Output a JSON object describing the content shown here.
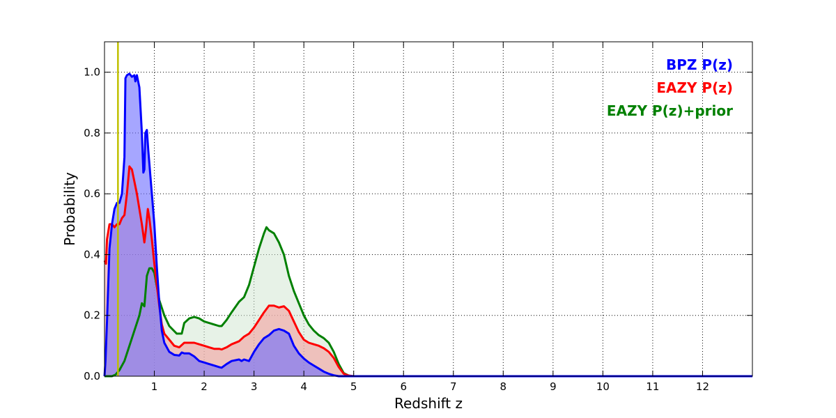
{
  "chart_data": {
    "type": "area",
    "title": "",
    "xlabel": "Redshift z",
    "ylabel": "Probability",
    "xlim": [
      0,
      13
    ],
    "ylim": [
      0,
      1.1
    ],
    "grid": true,
    "legend_placement": "top-right",
    "xticks": [
      1,
      2,
      3,
      4,
      5,
      6,
      7,
      8,
      9,
      10,
      11,
      12
    ],
    "yticks": [
      0.0,
      0.2,
      0.4,
      0.6,
      0.8,
      1.0
    ],
    "xtick_labels": [
      "1",
      "2",
      "3",
      "4",
      "5",
      "6",
      "7",
      "8",
      "9",
      "10",
      "11",
      "12"
    ],
    "ytick_labels": [
      "0.0",
      "0.2",
      "0.4",
      "0.6",
      "0.8",
      "1.0"
    ],
    "vline": {
      "x": 0.27,
      "color": "#bfbf00"
    },
    "series": [
      {
        "name": "EAZY P(z)+prior",
        "color": "#008000",
        "fill": "#cfe6cf",
        "fill_opacity": 0.5,
        "points": [
          [
            0,
            0
          ],
          [
            0.15,
            0
          ],
          [
            0.22,
            0.005
          ],
          [
            0.3,
            0.02
          ],
          [
            0.4,
            0.05
          ],
          [
            0.5,
            0.1
          ],
          [
            0.6,
            0.15
          ],
          [
            0.7,
            0.2
          ],
          [
            0.75,
            0.24
          ],
          [
            0.8,
            0.23
          ],
          [
            0.85,
            0.33
          ],
          [
            0.9,
            0.355
          ],
          [
            0.95,
            0.355
          ],
          [
            1.0,
            0.34
          ],
          [
            1.1,
            0.25
          ],
          [
            1.2,
            0.2
          ],
          [
            1.3,
            0.165
          ],
          [
            1.45,
            0.14
          ],
          [
            1.55,
            0.14
          ],
          [
            1.6,
            0.175
          ],
          [
            1.7,
            0.19
          ],
          [
            1.8,
            0.195
          ],
          [
            1.9,
            0.19
          ],
          [
            2.0,
            0.18
          ],
          [
            2.2,
            0.17
          ],
          [
            2.3,
            0.165
          ],
          [
            2.35,
            0.165
          ],
          [
            2.45,
            0.185
          ],
          [
            2.55,
            0.21
          ],
          [
            2.7,
            0.245
          ],
          [
            2.8,
            0.26
          ],
          [
            2.9,
            0.3
          ],
          [
            3.0,
            0.36
          ],
          [
            3.1,
            0.42
          ],
          [
            3.2,
            0.47
          ],
          [
            3.25,
            0.49
          ],
          [
            3.3,
            0.48
          ],
          [
            3.4,
            0.47
          ],
          [
            3.5,
            0.44
          ],
          [
            3.6,
            0.4
          ],
          [
            3.7,
            0.33
          ],
          [
            3.8,
            0.28
          ],
          [
            3.9,
            0.24
          ],
          [
            4.0,
            0.2
          ],
          [
            4.1,
            0.17
          ],
          [
            4.2,
            0.15
          ],
          [
            4.3,
            0.135
          ],
          [
            4.4,
            0.125
          ],
          [
            4.5,
            0.11
          ],
          [
            4.6,
            0.08
          ],
          [
            4.7,
            0.04
          ],
          [
            4.8,
            0.01
          ],
          [
            4.9,
            0.002
          ],
          [
            5.0,
            0
          ],
          [
            6,
            0
          ],
          [
            8,
            0
          ],
          [
            10,
            0
          ],
          [
            12,
            0
          ],
          [
            13,
            0
          ]
        ]
      },
      {
        "name": "EAZY P(z)",
        "color": "#ff0000",
        "fill": "#f4a0a0",
        "fill_opacity": 0.6,
        "points": [
          [
            0,
            0.38
          ],
          [
            0.03,
            0.37
          ],
          [
            0.05,
            0.45
          ],
          [
            0.1,
            0.5
          ],
          [
            0.15,
            0.5
          ],
          [
            0.2,
            0.49
          ],
          [
            0.25,
            0.5
          ],
          [
            0.3,
            0.5
          ],
          [
            0.35,
            0.52
          ],
          [
            0.4,
            0.53
          ],
          [
            0.45,
            0.6
          ],
          [
            0.5,
            0.69
          ],
          [
            0.55,
            0.68
          ],
          [
            0.6,
            0.64
          ],
          [
            0.65,
            0.6
          ],
          [
            0.7,
            0.55
          ],
          [
            0.75,
            0.5
          ],
          [
            0.8,
            0.44
          ],
          [
            0.83,
            0.48
          ],
          [
            0.87,
            0.55
          ],
          [
            0.9,
            0.52
          ],
          [
            0.95,
            0.45
          ],
          [
            1.0,
            0.37
          ],
          [
            1.05,
            0.3
          ],
          [
            1.1,
            0.23
          ],
          [
            1.15,
            0.17
          ],
          [
            1.2,
            0.14
          ],
          [
            1.3,
            0.12
          ],
          [
            1.4,
            0.1
          ],
          [
            1.5,
            0.095
          ],
          [
            1.6,
            0.11
          ],
          [
            1.7,
            0.11
          ],
          [
            1.8,
            0.11
          ],
          [
            1.9,
            0.105
          ],
          [
            2.0,
            0.1
          ],
          [
            2.1,
            0.095
          ],
          [
            2.2,
            0.09
          ],
          [
            2.3,
            0.09
          ],
          [
            2.35,
            0.088
          ],
          [
            2.45,
            0.095
          ],
          [
            2.55,
            0.105
          ],
          [
            2.7,
            0.115
          ],
          [
            2.8,
            0.13
          ],
          [
            2.9,
            0.14
          ],
          [
            3.0,
            0.16
          ],
          [
            3.1,
            0.185
          ],
          [
            3.2,
            0.21
          ],
          [
            3.3,
            0.232
          ],
          [
            3.4,
            0.232
          ],
          [
            3.5,
            0.226
          ],
          [
            3.6,
            0.23
          ],
          [
            3.7,
            0.215
          ],
          [
            3.8,
            0.18
          ],
          [
            3.9,
            0.145
          ],
          [
            4.0,
            0.12
          ],
          [
            4.1,
            0.11
          ],
          [
            4.2,
            0.105
          ],
          [
            4.3,
            0.1
          ],
          [
            4.4,
            0.092
          ],
          [
            4.5,
            0.08
          ],
          [
            4.6,
            0.06
          ],
          [
            4.7,
            0.03
          ],
          [
            4.8,
            0.008
          ],
          [
            4.9,
            0.002
          ],
          [
            5.0,
            0
          ],
          [
            6,
            0
          ],
          [
            8,
            0
          ],
          [
            10,
            0
          ],
          [
            12,
            0
          ],
          [
            13,
            0
          ]
        ]
      },
      {
        "name": "BPZ P(z)",
        "color": "#0000ff",
        "fill": "#6a6aff",
        "fill_opacity": 0.6,
        "points": [
          [
            0,
            0
          ],
          [
            0.02,
            0.05
          ],
          [
            0.05,
            0.18
          ],
          [
            0.1,
            0.42
          ],
          [
            0.15,
            0.5
          ],
          [
            0.2,
            0.55
          ],
          [
            0.25,
            0.57
          ],
          [
            0.3,
            0.57
          ],
          [
            0.35,
            0.6
          ],
          [
            0.4,
            0.72
          ],
          [
            0.42,
            0.98
          ],
          [
            0.45,
            0.99
          ],
          [
            0.5,
            0.995
          ],
          [
            0.55,
            0.985
          ],
          [
            0.6,
            0.99
          ],
          [
            0.62,
            0.97
          ],
          [
            0.65,
            0.99
          ],
          [
            0.7,
            0.95
          ],
          [
            0.75,
            0.8
          ],
          [
            0.78,
            0.67
          ],
          [
            0.8,
            0.68
          ],
          [
            0.82,
            0.8
          ],
          [
            0.85,
            0.81
          ],
          [
            0.88,
            0.74
          ],
          [
            0.9,
            0.7
          ],
          [
            0.95,
            0.6
          ],
          [
            1.0,
            0.5
          ],
          [
            1.05,
            0.36
          ],
          [
            1.1,
            0.24
          ],
          [
            1.15,
            0.15
          ],
          [
            1.2,
            0.11
          ],
          [
            1.3,
            0.08
          ],
          [
            1.4,
            0.07
          ],
          [
            1.5,
            0.068
          ],
          [
            1.55,
            0.078
          ],
          [
            1.6,
            0.075
          ],
          [
            1.7,
            0.075
          ],
          [
            1.8,
            0.065
          ],
          [
            1.9,
            0.05
          ],
          [
            2.0,
            0.045
          ],
          [
            2.1,
            0.04
          ],
          [
            2.2,
            0.035
          ],
          [
            2.3,
            0.03
          ],
          [
            2.35,
            0.028
          ],
          [
            2.45,
            0.04
          ],
          [
            2.55,
            0.05
          ],
          [
            2.7,
            0.055
          ],
          [
            2.75,
            0.05
          ],
          [
            2.8,
            0.055
          ],
          [
            2.9,
            0.05
          ],
          [
            3.0,
            0.08
          ],
          [
            3.1,
            0.105
          ],
          [
            3.2,
            0.125
          ],
          [
            3.3,
            0.135
          ],
          [
            3.4,
            0.15
          ],
          [
            3.5,
            0.155
          ],
          [
            3.6,
            0.15
          ],
          [
            3.7,
            0.14
          ],
          [
            3.8,
            0.1
          ],
          [
            3.9,
            0.075
          ],
          [
            4.0,
            0.058
          ],
          [
            4.1,
            0.045
          ],
          [
            4.2,
            0.035
          ],
          [
            4.3,
            0.025
          ],
          [
            4.4,
            0.015
          ],
          [
            4.5,
            0.008
          ],
          [
            4.6,
            0.003
          ],
          [
            4.7,
            0
          ],
          [
            6,
            0
          ],
          [
            8,
            0
          ],
          [
            10,
            0
          ],
          [
            12,
            0
          ],
          [
            13,
            0
          ]
        ]
      }
    ],
    "legend": [
      {
        "label": "BPZ P(z)",
        "color": "#0000ff"
      },
      {
        "label": "EAZY P(z)",
        "color": "#ff0000"
      },
      {
        "label": "EAZY P(z)+prior",
        "color": "#008000"
      }
    ]
  }
}
